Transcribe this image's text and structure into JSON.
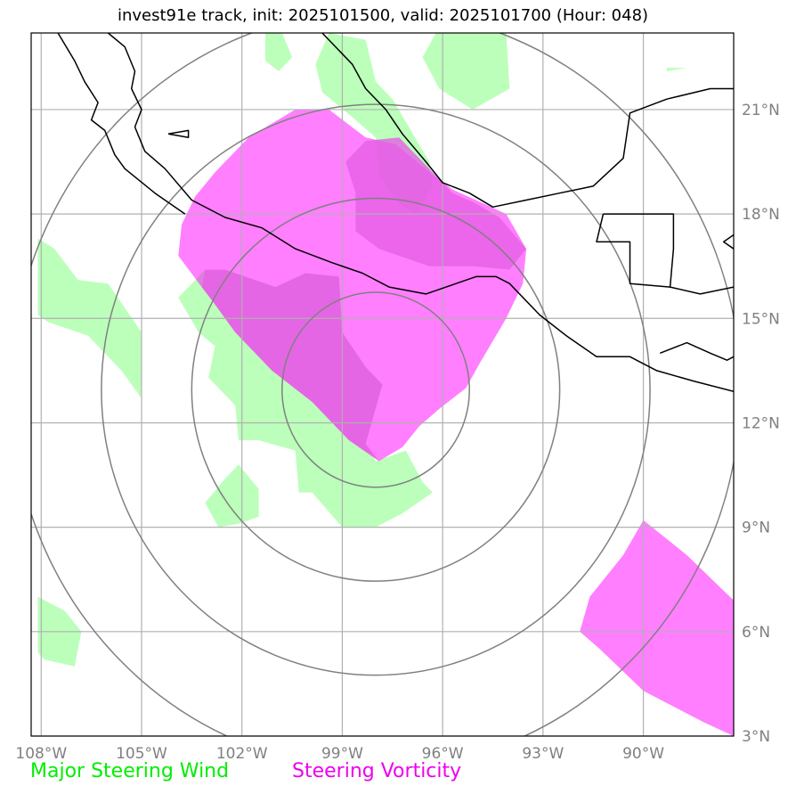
{
  "title": "invest91e track, init: 2025101500, valid: 2025101700 (Hour: 048)",
  "chart_data": {
    "type": "map",
    "title": "invest91e track, init: 2025101500, valid: 2025101700 (Hour: 048)",
    "lon_range": [
      -108.3,
      -87.3
    ],
    "lat_range": [
      3.0,
      23.2
    ],
    "lon_ticks": [
      {
        "value": -108,
        "label": "108°W"
      },
      {
        "value": -105,
        "label": "105°W"
      },
      {
        "value": -102,
        "label": "102°W"
      },
      {
        "value": -99,
        "label": "99°W"
      },
      {
        "value": -96,
        "label": "96°W"
      },
      {
        "value": -93,
        "label": "93°W"
      },
      {
        "value": -90,
        "label": "90°W"
      }
    ],
    "lat_ticks": [
      {
        "value": 21,
        "label": "21°N"
      },
      {
        "value": 18,
        "label": "18°N"
      },
      {
        "value": 15,
        "label": "15°N"
      },
      {
        "value": 12,
        "label": "12°N"
      },
      {
        "value": 9,
        "label": "9°N"
      },
      {
        "value": 6,
        "label": "6°N"
      },
      {
        "value": 3,
        "label": "3°N"
      }
    ],
    "range_rings": {
      "center_lon": -98.0,
      "center_lat": 12.95,
      "radii_deg": [
        2.8,
        5.5,
        8.2,
        10.9
      ]
    },
    "colors": {
      "wind": "#bbffbb",
      "vorticity": "#ff00ff",
      "ring": "#808080",
      "grid": "#b0b0b0",
      "coast": "#000000"
    },
    "wind_regions": [
      [
        [
          -103.9,
          15.6
        ],
        [
          -103.1,
          16.4
        ],
        [
          -102.5,
          16.4
        ],
        [
          -101.0,
          15.9
        ],
        [
          -100.1,
          16.3
        ],
        [
          -99.1,
          16.2
        ],
        [
          -99.0,
          14.6
        ],
        [
          -98.3,
          13.6
        ],
        [
          -97.8,
          13.1
        ],
        [
          -98.3,
          11.4
        ],
        [
          -98.0,
          10.9
        ],
        [
          -97.1,
          11.2
        ],
        [
          -96.6,
          10.3
        ],
        [
          -96.3,
          10.0
        ],
        [
          -97.2,
          9.4
        ],
        [
          -98.0,
          9.0
        ],
        [
          -99.0,
          9.0
        ],
        [
          -99.9,
          10.0
        ],
        [
          -100.3,
          10.0
        ],
        [
          -100.4,
          11.2
        ],
        [
          -101.5,
          11.5
        ],
        [
          -102.1,
          11.5
        ],
        [
          -102.2,
          12.5
        ],
        [
          -102.9,
          13.2
        ],
        [
          -103.0,
          13.3
        ],
        [
          -102.8,
          14.2
        ],
        [
          -103.3,
          14.6
        ],
        [
          -103.9,
          15.6
        ]
      ],
      [
        [
          -102.1,
          10.8
        ],
        [
          -101.5,
          10.1
        ],
        [
          -101.5,
          9.3
        ],
        [
          -102.1,
          9.1
        ],
        [
          -102.7,
          9.0
        ],
        [
          -103.1,
          9.7
        ],
        [
          -102.5,
          10.4
        ],
        [
          -102.1,
          10.8
        ]
      ],
      [
        [
          -108.1,
          17.3
        ],
        [
          -107.6,
          17.0
        ],
        [
          -106.9,
          16.1
        ],
        [
          -106.0,
          16.0
        ],
        [
          -105.0,
          14.6
        ],
        [
          -105.0,
          12.7
        ],
        [
          -105.6,
          13.5
        ],
        [
          -106.6,
          14.5
        ],
        [
          -107.8,
          14.9
        ],
        [
          -108.1,
          15.1
        ],
        [
          -108.1,
          17.3
        ]
      ],
      [
        [
          -99.4,
          23.2
        ],
        [
          -98.3,
          23.0
        ],
        [
          -98.0,
          21.8
        ],
        [
          -97.5,
          21.3
        ],
        [
          -96.4,
          19.5
        ],
        [
          -96.3,
          18.8
        ],
        [
          -96.8,
          18.0
        ],
        [
          -97.3,
          18.3
        ],
        [
          -97.9,
          19.1
        ],
        [
          -98.0,
          20.2
        ],
        [
          -98.6,
          20.7
        ],
        [
          -99.6,
          21.5
        ],
        [
          -99.8,
          22.3
        ],
        [
          -99.4,
          23.2
        ]
      ],
      [
        [
          -96.2,
          23.2
        ],
        [
          -94.1,
          23.2
        ],
        [
          -94.0,
          21.6
        ],
        [
          -95.1,
          21.0
        ],
        [
          -96.1,
          21.6
        ],
        [
          -96.6,
          22.5
        ],
        [
          -96.2,
          23.2
        ]
      ],
      [
        [
          -101.3,
          23.2
        ],
        [
          -100.8,
          23.2
        ],
        [
          -100.5,
          22.5
        ],
        [
          -100.9,
          22.1
        ],
        [
          -101.3,
          22.4
        ],
        [
          -101.3,
          23.2
        ]
      ],
      [
        [
          -108.1,
          7.0
        ],
        [
          -107.3,
          6.6
        ],
        [
          -106.8,
          6.0
        ],
        [
          -107.0,
          5.0
        ],
        [
          -107.9,
          5.2
        ],
        [
          -108.1,
          5.4
        ],
        [
          -108.1,
          7.0
        ]
      ],
      [
        [
          -89.3,
          22.2
        ],
        [
          -88.7,
          22.2
        ],
        [
          -89.3,
          22.1
        ],
        [
          -89.3,
          22.2
        ]
      ]
    ],
    "vorticity_regions": [
      [
        [
          -100.4,
          21.0
        ],
        [
          -99.4,
          21.0
        ],
        [
          -98.3,
          20.2
        ],
        [
          -97.4,
          20.0
        ],
        [
          -96.4,
          19.2
        ],
        [
          -95.7,
          18.7
        ],
        [
          -95.0,
          18.4
        ],
        [
          -94.1,
          18.0
        ],
        [
          -93.5,
          17.0
        ],
        [
          -93.6,
          16.0
        ],
        [
          -94.1,
          15.0
        ],
        [
          -94.9,
          13.7
        ],
        [
          -95.3,
          13.0
        ],
        [
          -96.1,
          12.4
        ],
        [
          -96.7,
          11.9
        ],
        [
          -97.2,
          11.3
        ],
        [
          -97.9,
          10.9
        ],
        [
          -98.8,
          11.5
        ],
        [
          -99.9,
          12.6
        ],
        [
          -101.1,
          13.5
        ],
        [
          -102.2,
          14.6
        ],
        [
          -102.8,
          15.4
        ],
        [
          -103.2,
          15.9
        ],
        [
          -103.9,
          16.8
        ],
        [
          -103.8,
          17.7
        ],
        [
          -103.4,
          18.5
        ],
        [
          -102.8,
          19.2
        ],
        [
          -101.8,
          20.2
        ],
        [
          -100.4,
          21.0
        ]
      ],
      [
        [
          -90.0,
          9.2
        ],
        [
          -88.7,
          8.2
        ],
        [
          -87.3,
          6.9
        ],
        [
          -87.3,
          3.0
        ],
        [
          -88.2,
          3.4
        ],
        [
          -90.0,
          4.3
        ],
        [
          -91.3,
          5.5
        ],
        [
          -91.9,
          6.0
        ],
        [
          -91.6,
          7.0
        ],
        [
          -90.6,
          8.2
        ],
        [
          -90.0,
          9.2
        ]
      ]
    ],
    "overlap_regions": [
      [
        [
          -97.3,
          20.2
        ],
        [
          -96.4,
          19.3
        ],
        [
          -95.7,
          18.6
        ],
        [
          -95.0,
          18.3
        ],
        [
          -94.3,
          17.9
        ],
        [
          -93.5,
          17.0
        ],
        [
          -94.0,
          16.4
        ],
        [
          -95.1,
          16.5
        ],
        [
          -96.4,
          16.5
        ],
        [
          -97.9,
          17.0
        ],
        [
          -98.6,
          17.5
        ],
        [
          -98.6,
          18.6
        ],
        [
          -98.9,
          19.5
        ],
        [
          -98.3,
          20.1
        ],
        [
          -97.3,
          20.2
        ]
      ],
      [
        [
          -103.1,
          16.4
        ],
        [
          -102.5,
          16.4
        ],
        [
          -101.0,
          15.9
        ],
        [
          -100.1,
          16.3
        ],
        [
          -99.1,
          16.2
        ],
        [
          -99.0,
          14.6
        ],
        [
          -98.3,
          13.6
        ],
        [
          -97.8,
          13.1
        ],
        [
          -98.3,
          11.4
        ],
        [
          -97.9,
          10.9
        ],
        [
          -98.8,
          11.5
        ],
        [
          -99.9,
          12.6
        ],
        [
          -101.1,
          13.5
        ],
        [
          -102.2,
          14.6
        ],
        [
          -102.8,
          15.4
        ],
        [
          -103.2,
          15.9
        ],
        [
          -103.1,
          16.4
        ]
      ]
    ],
    "coastlines": [
      [
        [
          -106.0,
          23.2
        ],
        [
          -105.5,
          22.8
        ],
        [
          -105.2,
          22.1
        ],
        [
          -105.3,
          21.6
        ],
        [
          -105.0,
          21.0
        ],
        [
          -105.2,
          20.5
        ],
        [
          -104.9,
          19.8
        ],
        [
          -104.3,
          19.3
        ],
        [
          -103.5,
          18.4
        ],
        [
          -102.5,
          17.9
        ],
        [
          -101.4,
          17.6
        ],
        [
          -100.4,
          17.0
        ],
        [
          -99.3,
          16.6
        ],
        [
          -98.4,
          16.3
        ],
        [
          -97.6,
          15.9
        ],
        [
          -96.5,
          15.7
        ],
        [
          -95.6,
          16.0
        ],
        [
          -95.0,
          16.2
        ],
        [
          -94.4,
          16.2
        ],
        [
          -94.0,
          16.0
        ],
        [
          -93.1,
          15.1
        ],
        [
          -92.3,
          14.5
        ],
        [
          -91.4,
          13.9
        ],
        [
          -90.4,
          13.9
        ],
        [
          -89.6,
          13.5
        ],
        [
          -88.5,
          13.2
        ],
        [
          -87.3,
          12.9
        ]
      ],
      [
        [
          -99.6,
          23.2
        ],
        [
          -98.7,
          22.3
        ],
        [
          -98.3,
          21.6
        ],
        [
          -97.7,
          21.0
        ],
        [
          -97.2,
          20.3
        ],
        [
          -96.5,
          19.5
        ],
        [
          -96.0,
          18.9
        ],
        [
          -95.2,
          18.6
        ],
        [
          -94.5,
          18.2
        ],
        [
          -93.5,
          18.4
        ],
        [
          -92.5,
          18.6
        ],
        [
          -91.5,
          18.8
        ],
        [
          -90.6,
          19.6
        ],
        [
          -90.4,
          20.9
        ],
        [
          -89.3,
          21.3
        ],
        [
          -88.0,
          21.6
        ],
        [
          -87.3,
          21.6
        ]
      ],
      [
        [
          -91.2,
          18.0
        ],
        [
          -89.1,
          18.0
        ],
        [
          -89.1,
          17.0
        ],
        [
          -89.2,
          15.9
        ],
        [
          -90.4,
          16.0
        ],
        [
          -90.4,
          17.2
        ],
        [
          -91.4,
          17.2
        ],
        [
          -91.2,
          18.0
        ]
      ],
      [
        [
          -89.2,
          15.9
        ],
        [
          -88.3,
          15.7
        ],
        [
          -87.3,
          15.9
        ]
      ],
      [
        [
          -89.5,
          14.0
        ],
        [
          -88.7,
          14.3
        ],
        [
          -88.0,
          14.0
        ],
        [
          -87.5,
          13.8
        ],
        [
          -87.3,
          13.9
        ]
      ],
      [
        [
          -87.3,
          17.4
        ],
        [
          -87.6,
          17.2
        ],
        [
          -87.3,
          17.0
        ]
      ],
      [
        [
          -107.5,
          23.2
        ],
        [
          -107.0,
          22.4
        ],
        [
          -106.7,
          21.8
        ],
        [
          -106.3,
          21.2
        ],
        [
          -106.5,
          20.7
        ],
        [
          -106.1,
          20.4
        ],
        [
          -105.8,
          19.7
        ],
        [
          -105.5,
          19.3
        ],
        [
          -104.6,
          18.6
        ],
        [
          -103.7,
          18.0
        ]
      ],
      [
        [
          -104.2,
          20.3
        ],
        [
          -103.6,
          20.4
        ],
        [
          -103.6,
          20.2
        ],
        [
          -104.2,
          20.3
        ]
      ]
    ]
  },
  "legend": {
    "wind_label": "Major Steering Wind",
    "wind_color": "#00ee00",
    "vorticity_label": "Steering Vorticity",
    "vorticity_color": "#ee00ee"
  }
}
